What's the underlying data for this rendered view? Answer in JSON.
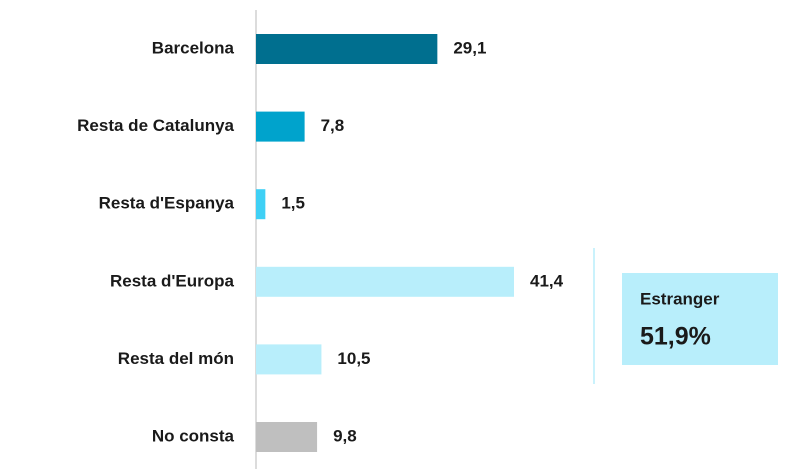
{
  "chart_data": {
    "type": "bar",
    "orientation": "horizontal",
    "categories": [
      "Barcelona",
      "Resta de Catalunya",
      "Resta d'Espanya",
      "Resta d'Europa",
      "Resta del món",
      "No consta"
    ],
    "values": [
      29.1,
      7.8,
      1.5,
      41.4,
      10.5,
      9.8
    ],
    "value_labels": [
      "29,1",
      "7,8",
      "1,5",
      "41,4",
      "10,5",
      "9,8"
    ],
    "colors": [
      "#006f8f",
      "#00a3cc",
      "#3fd0f5",
      "#b8eefb",
      "#b8eefb",
      "#bfbfbf"
    ],
    "annotation": {
      "title": "Estranger",
      "value_label": "51,9%"
    }
  }
}
